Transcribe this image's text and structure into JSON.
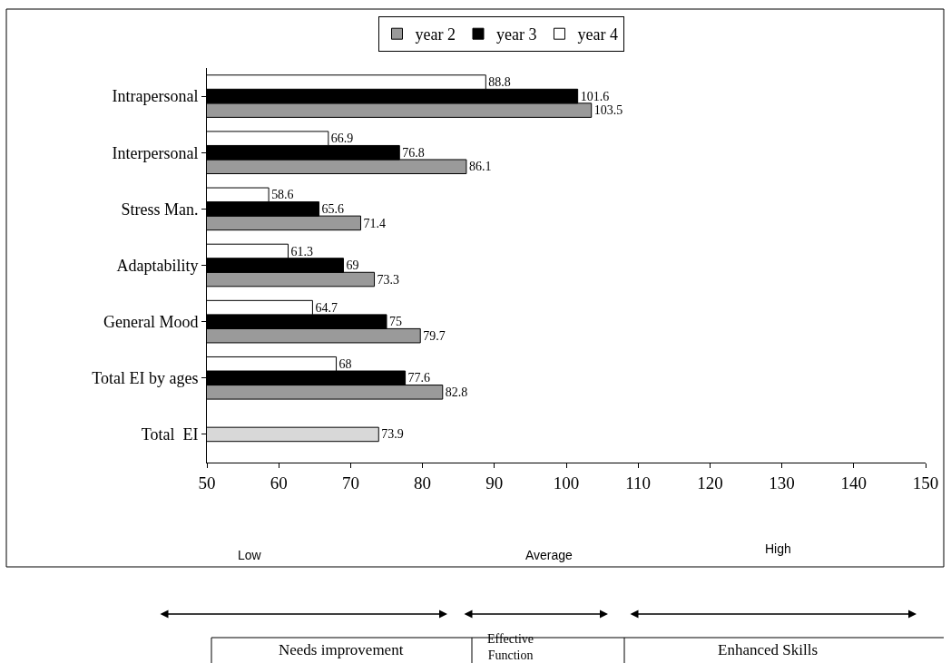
{
  "chart_data": {
    "type": "bar",
    "orientation": "horizontal",
    "categories": [
      "Intrapersonal",
      "Interpersonal",
      "Stress Man.",
      "Adaptability",
      "General Mood",
      "Total EI by ages",
      "Total  EI"
    ],
    "series": [
      {
        "name": "year 2",
        "color": "#9a9a9a",
        "values": [
          103.5,
          86.1,
          71.4,
          73.3,
          79.7,
          82.8,
          null
        ]
      },
      {
        "name": "year 3",
        "color": "#000000",
        "values": [
          101.6,
          76.8,
          65.6,
          69,
          75,
          77.6,
          null
        ]
      },
      {
        "name": "year 4",
        "color": "#ffffff",
        "values": [
          88.8,
          66.9,
          58.6,
          61.3,
          64.7,
          68,
          null
        ]
      },
      {
        "color": "#d8d8d8",
        "values": [
          null,
          null,
          null,
          null,
          null,
          null,
          73.9
        ]
      }
    ],
    "xlim": [
      50,
      150
    ],
    "xticks": [
      50,
      60,
      70,
      80,
      90,
      100,
      110,
      120,
      130,
      140,
      150
    ],
    "data_labels": true,
    "legend": "top",
    "annotations": [
      "Low",
      "Average",
      "High",
      "Needs improvement",
      "Effective\nFunction",
      "Enhanced Skills"
    ]
  }
}
